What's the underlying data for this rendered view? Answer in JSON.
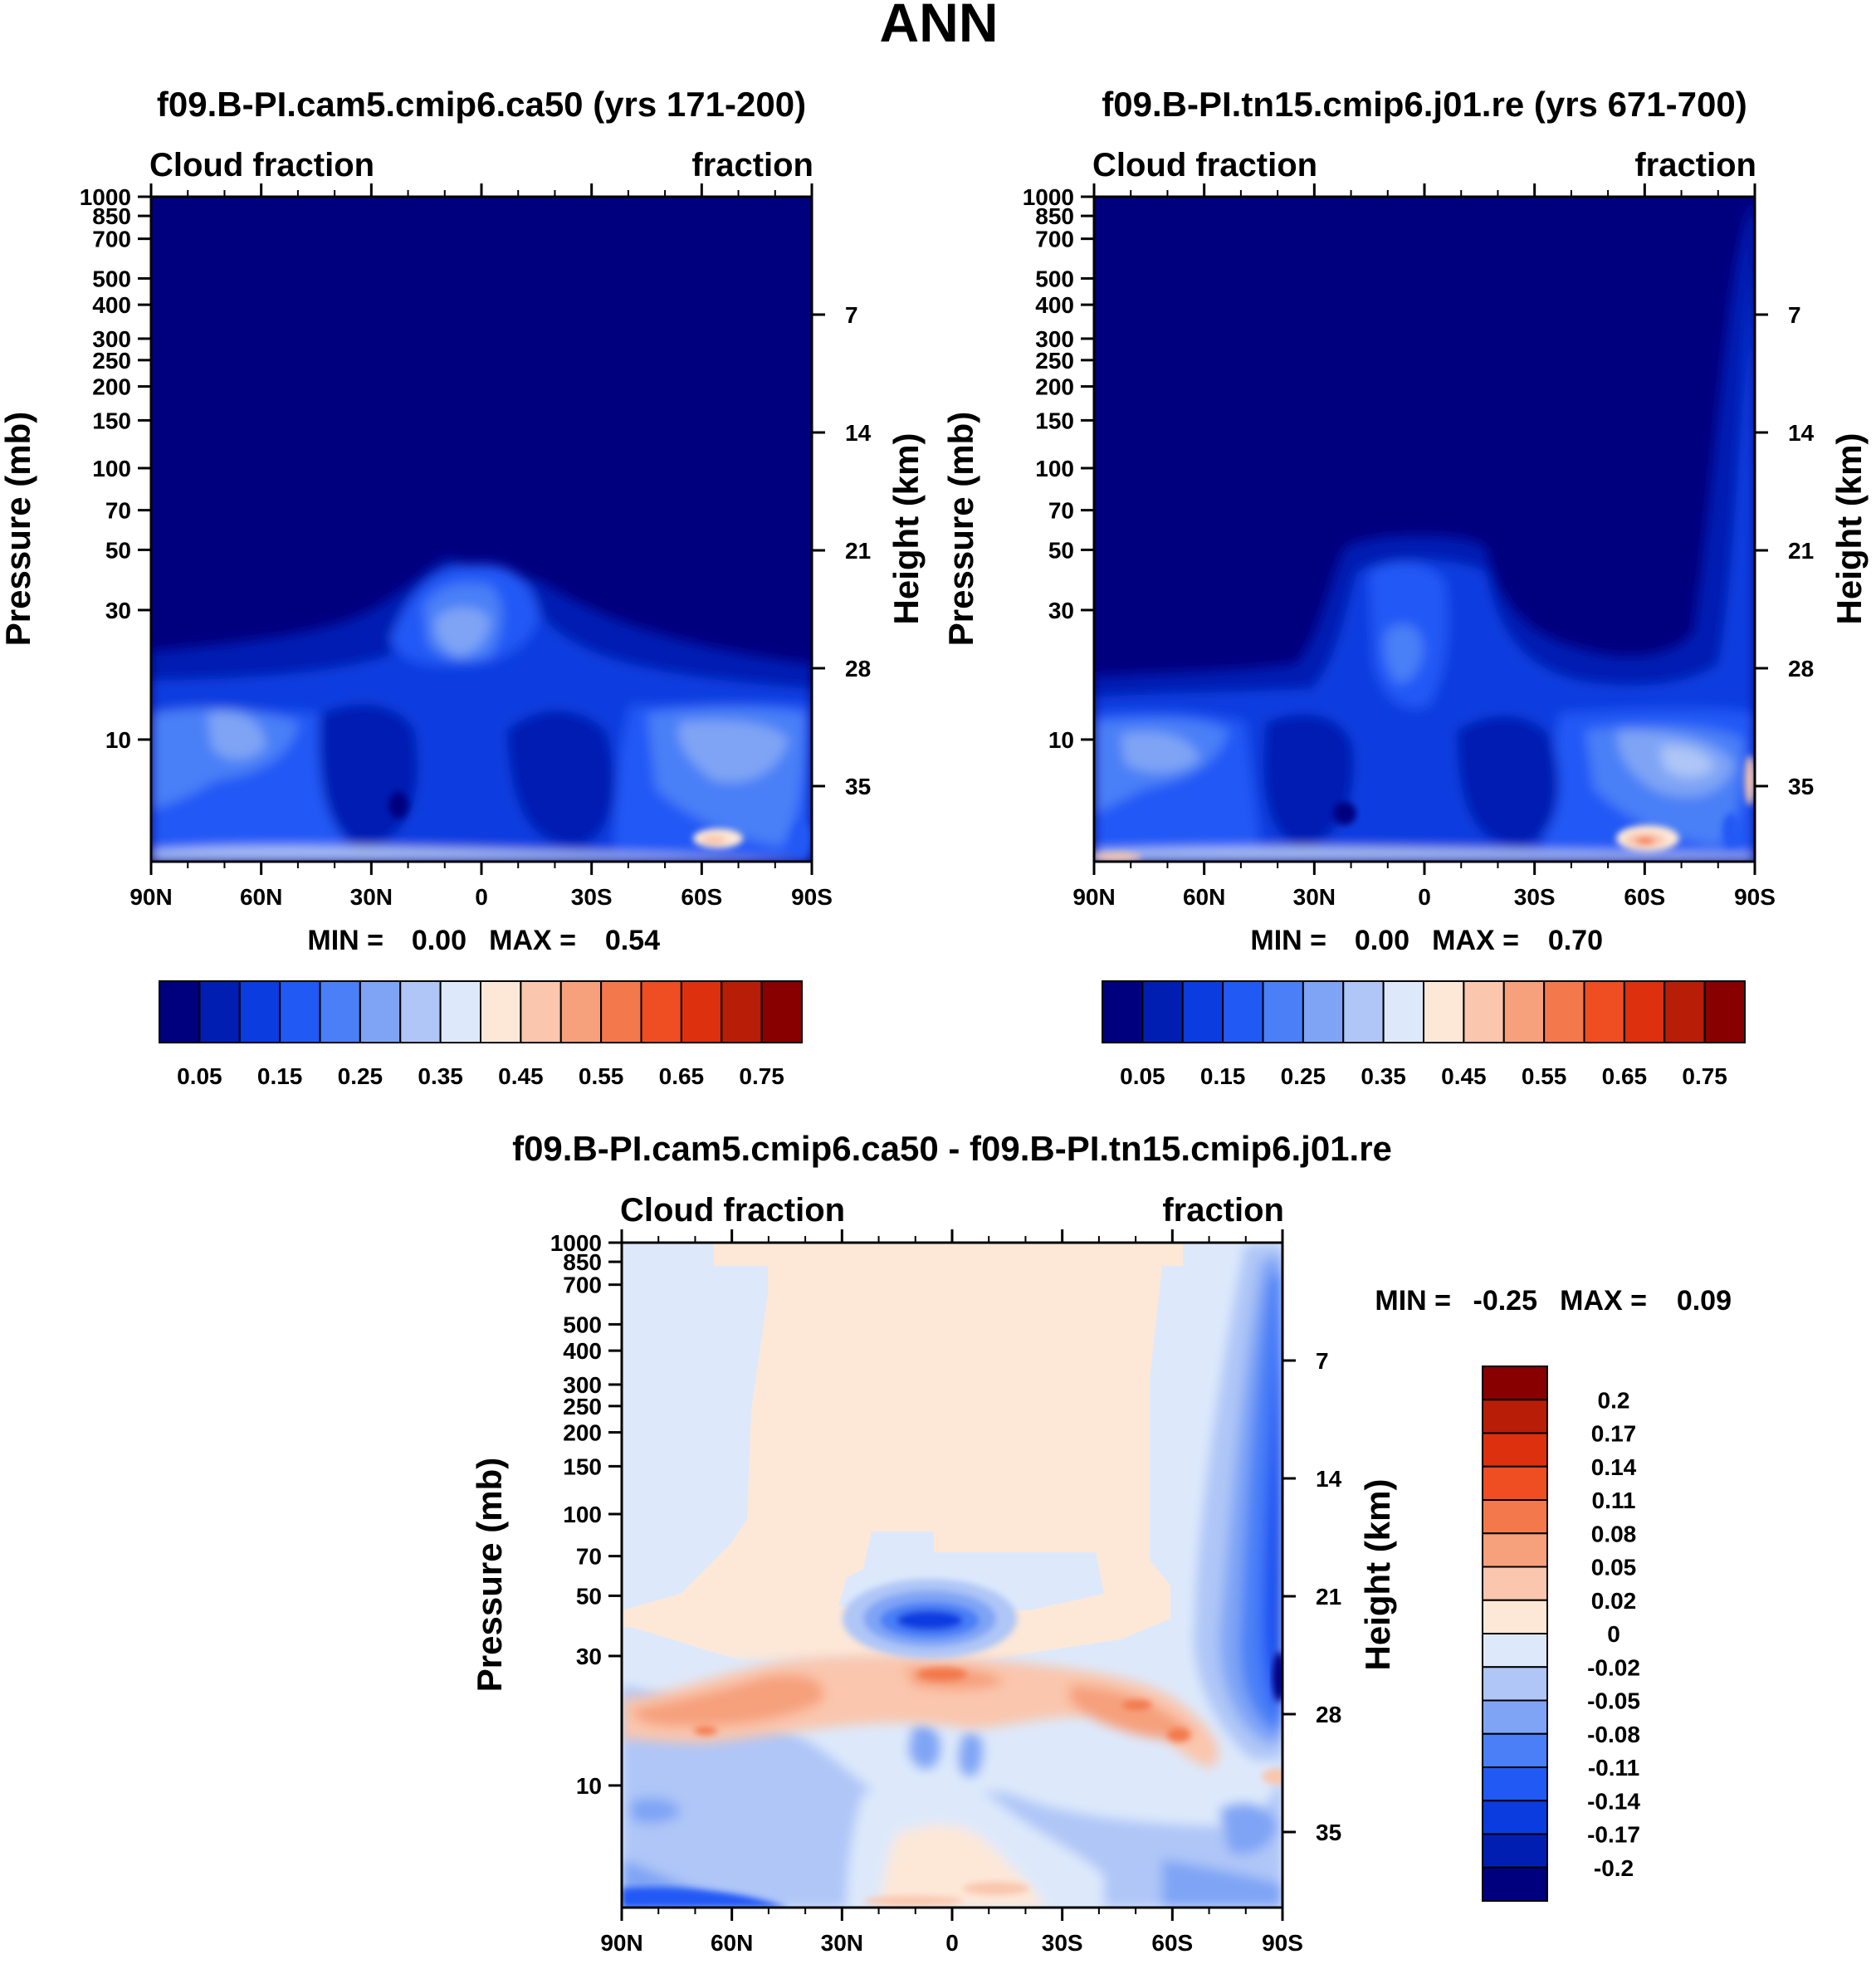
{
  "figure": {
    "title": "ANN"
  },
  "panels": [
    {
      "title": "f09.B-PI.cam5.cmip6.ca50 (yrs 171-200)",
      "left_label": "Cloud fraction",
      "right_label": "fraction",
      "ylabel": "Pressure (mb)",
      "ylabel_right": "Height (km)",
      "stats": {
        "min_label": "MIN =",
        "min": "0.00",
        "max_label": "MAX =",
        "max": "0.54"
      }
    },
    {
      "title": "f09.B-PI.tn15.cmip6.j01.re (yrs 671-700)",
      "left_label": "Cloud fraction",
      "right_label": "fraction",
      "ylabel": "Pressure (mb)",
      "ylabel_right": "Height (km)",
      "stats": {
        "min_label": "MIN =",
        "min": "0.00",
        "max_label": "MAX =",
        "max": "0.70"
      }
    },
    {
      "title": "f09.B-PI.cam5.cmip6.ca50 - f09.B-PI.tn15.cmip6.j01.re",
      "left_label": "Cloud fraction",
      "right_label": "fraction",
      "ylabel": "Pressure (mb)",
      "ylabel_right": "Height (km)",
      "stats": {
        "min_label": "MIN =",
        "min": "-0.25",
        "max_label": "MAX =",
        "max": "0.09"
      }
    }
  ],
  "chart_data": [
    {
      "type": "heatmap",
      "title": "f09.B-PI.cam5.cmip6.ca50 (yrs 171-200)",
      "x_categories": [
        "90N",
        "60N",
        "30N",
        "0",
        "30S",
        "60S",
        "90S"
      ],
      "x_range": [
        90,
        -90
      ],
      "y_ticks": [
        10,
        30,
        50,
        70,
        100,
        150,
        200,
        250,
        300,
        400,
        500,
        700,
        850,
        1000
      ],
      "y_scale": "log",
      "y_range": [
        1000,
        3.55
      ],
      "height_ticks_km": [
        35,
        28,
        21,
        14,
        7
      ],
      "colorbar": {
        "labels": [
          "0.05",
          "0.15",
          "0.25",
          "0.35",
          "0.45",
          "0.55",
          "0.65",
          "0.75"
        ],
        "colors": [
          "#00007f",
          "#001fb2",
          "#0a3ce0",
          "#2159f5",
          "#4a7ff7",
          "#7fa4f5",
          "#afc6f7",
          "#dde9fb",
          "#fde8d8",
          "#fac6ad",
          "#f6a07c",
          "#f3784c",
          "#ef4e22",
          "#dd300e",
          "#b81d07",
          "#880000"
        ]
      },
      "min": 0.0,
      "max": 0.54
    },
    {
      "type": "heatmap",
      "title": "f09.B-PI.tn15.cmip6.j01.re (yrs 671-700)",
      "x_categories": [
        "90N",
        "60N",
        "30N",
        "0",
        "30S",
        "60S",
        "90S"
      ],
      "x_range": [
        90,
        -90
      ],
      "y_ticks": [
        10,
        30,
        50,
        70,
        100,
        150,
        200,
        250,
        300,
        400,
        500,
        700,
        850,
        1000
      ],
      "y_scale": "log",
      "y_range": [
        1000,
        3.55
      ],
      "height_ticks_km": [
        35,
        28,
        21,
        14,
        7
      ],
      "colorbar": {
        "labels": [
          "0.05",
          "0.15",
          "0.25",
          "0.35",
          "0.45",
          "0.55",
          "0.65",
          "0.75"
        ],
        "colors": [
          "#00007f",
          "#001fb2",
          "#0a3ce0",
          "#2159f5",
          "#4a7ff7",
          "#7fa4f5",
          "#afc6f7",
          "#dde9fb",
          "#fde8d8",
          "#fac6ad",
          "#f6a07c",
          "#f3784c",
          "#ef4e22",
          "#dd300e",
          "#b81d07",
          "#880000"
        ]
      },
      "min": 0.0,
      "max": 0.7
    },
    {
      "type": "heatmap",
      "title": "f09.B-PI.cam5.cmip6.ca50 - f09.B-PI.tn15.cmip6.j01.re",
      "x_categories": [
        "90N",
        "60N",
        "30N",
        "0",
        "30S",
        "60S",
        "90S"
      ],
      "x_range": [
        90,
        -90
      ],
      "y_ticks": [
        10,
        30,
        50,
        70,
        100,
        150,
        200,
        250,
        300,
        400,
        500,
        700,
        850,
        1000
      ],
      "y_scale": "log",
      "y_range": [
        1000,
        3.55
      ],
      "height_ticks_km": [
        35,
        28,
        21,
        14,
        7
      ],
      "colorbar": {
        "labels": [
          "0.2",
          "0.17",
          "0.14",
          "0.11",
          "0.08",
          "0.05",
          "0.02",
          "0",
          "-0.02",
          "-0.05",
          "-0.08",
          "-0.11",
          "-0.14",
          "-0.17",
          "-0.2"
        ],
        "colors": [
          "#880000",
          "#b81d07",
          "#dd300e",
          "#ef4e22",
          "#f3784c",
          "#f6a07c",
          "#fac6ad",
          "#fde8d8",
          "#dde9fb",
          "#afc6f7",
          "#7fa4f5",
          "#4a7ff7",
          "#2159f5",
          "#0a3ce0",
          "#001fb2",
          "#00007f"
        ]
      },
      "min": -0.25,
      "max": 0.09
    }
  ]
}
